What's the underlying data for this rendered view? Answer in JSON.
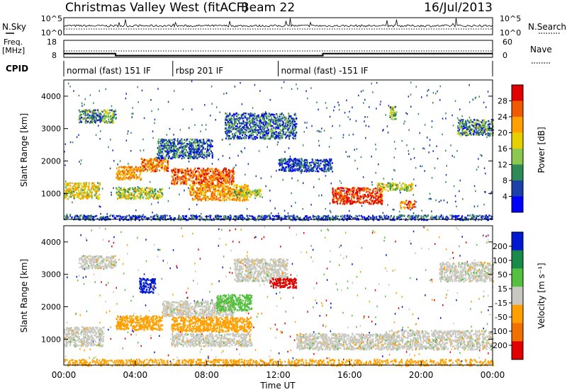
{
  "header": {
    "title": "Christmas Valley West (fitACF)",
    "beam": "Beam 22",
    "date": "16/Jul/2013"
  },
  "aux_labels": {
    "nsky": "N.Sky",
    "nsearch": "N.Search",
    "freq_line1": "Freq.",
    "freq_line2": "[MHz]",
    "nave": "Nave",
    "cpid": "CPID"
  },
  "noise_axis": {
    "top": "10^5",
    "bottom": "10^0"
  },
  "freq_axis": {
    "left_ticks": [
      "18",
      "8"
    ],
    "right_ticks": [
      "60",
      "0"
    ]
  },
  "cpid_segments": [
    {
      "label": "normal (fast) 151 IF",
      "start_h": 0.0,
      "end_h": 6.1
    },
    {
      "label": "rbsp 201 IF",
      "start_h": 6.1,
      "end_h": 12.0
    },
    {
      "label": "normal (fast) -151 IF",
      "start_h": 12.0,
      "end_h": 24.0
    }
  ],
  "freq_trace": [
    {
      "start_h": 0.0,
      "end_h": 2.9,
      "mhz": 10.2
    },
    {
      "start_h": 2.9,
      "end_h": 14.5,
      "mhz": 9.0
    },
    {
      "start_h": 14.5,
      "end_h": 15.0,
      "mhz": 10.2
    },
    {
      "start_h": 15.0,
      "end_h": 24.0,
      "mhz": 10.2
    }
  ],
  "xaxis": {
    "ticks": [
      "00:00",
      "04:00",
      "08:00",
      "12:00",
      "16:00",
      "20:00",
      "00:00"
    ],
    "tick_hours": [
      0,
      4,
      8,
      12,
      16,
      20,
      24
    ],
    "label": "Time UT"
  },
  "power_panel": {
    "ylabel": "Slant Range [km]",
    "yticks": [
      "1000",
      "2000",
      "3000",
      "4000"
    ],
    "colorbar_label": "Power [dB]",
    "colorbar_ticks": [
      "28",
      "24",
      "20",
      "16",
      "12",
      "8",
      "4"
    ],
    "colorbar_colors": [
      "#e00000",
      "#f05a00",
      "#ffa000",
      "#e7d000",
      "#8cc850",
      "#2e8b57",
      "#1c3fa8",
      "#0000ff"
    ]
  },
  "velocity_panel": {
    "ylabel": "Slant Range [km]",
    "yticks": [
      "1000",
      "2000",
      "3000",
      "4000"
    ],
    "colorbar_label": "Velocity [m s⁻¹]",
    "colorbar_ticks": [
      "200",
      "100",
      "50",
      "15",
      "-15",
      "-50",
      "-100",
      "-200"
    ],
    "colorbar_colors": [
      "#0018d0",
      "#1a8a4a",
      "#55c040",
      "#c8c8c0",
      "#ffa000",
      "#f07000",
      "#e00000"
    ]
  },
  "chart_data": [
    {
      "type": "heatmap",
      "title": "Christmas Valley West (fitACF) Beam 22 16/Jul/2013",
      "xlabel": "Time UT",
      "ylabel": "Slant Range [km]",
      "colorbar": "Power [dB]",
      "xlim": [
        0,
        24
      ],
      "ylim": [
        200,
        4500
      ],
      "clim": [
        0,
        30
      ],
      "features": [
        {
          "t0": 0.0,
          "t1": 2.0,
          "r0": 850,
          "r1": 1350,
          "value": 16
        },
        {
          "t0": 0.8,
          "t1": 2.9,
          "r0": 3200,
          "r1": 3600,
          "value": 10
        },
        {
          "t0": 2.9,
          "t1": 4.3,
          "r0": 1450,
          "r1": 1850,
          "value": 20
        },
        {
          "t0": 4.3,
          "t1": 5.8,
          "r0": 1700,
          "r1": 2100,
          "value": 22
        },
        {
          "t0": 2.9,
          "t1": 5.5,
          "r0": 850,
          "r1": 1200,
          "value": 14
        },
        {
          "t0": 5.2,
          "t1": 8.3,
          "r0": 2100,
          "r1": 2700,
          "value": 8
        },
        {
          "t0": 6.0,
          "t1": 9.5,
          "r0": 1300,
          "r1": 1800,
          "value": 24
        },
        {
          "t0": 7.0,
          "t1": 10.3,
          "r0": 800,
          "r1": 1300,
          "value": 20
        },
        {
          "t0": 9.5,
          "t1": 11.0,
          "r0": 900,
          "r1": 1150,
          "value": 14
        },
        {
          "t0": 9.0,
          "t1": 13.0,
          "r0": 2700,
          "r1": 3500,
          "value": 8
        },
        {
          "t0": 12.0,
          "t1": 15.0,
          "r0": 1700,
          "r1": 2100,
          "value": 6
        },
        {
          "t0": 15.0,
          "t1": 17.8,
          "r0": 700,
          "r1": 1200,
          "value": 26
        },
        {
          "t0": 17.5,
          "t1": 19.5,
          "r0": 1100,
          "r1": 1350,
          "value": 14
        },
        {
          "t0": 18.8,
          "t1": 19.6,
          "r0": 550,
          "r1": 800,
          "value": 22
        },
        {
          "t0": 18.2,
          "t1": 18.6,
          "r0": 3300,
          "r1": 3700,
          "value": 12
        },
        {
          "t0": 22.0,
          "t1": 24.0,
          "r0": 2800,
          "r1": 3300,
          "value": 10
        },
        {
          "t0": 0.0,
          "t1": 24.0,
          "r0": 200,
          "r1": 350,
          "value": 6
        }
      ]
    },
    {
      "type": "heatmap",
      "title": "Christmas Valley West (fitACF) Beam 22 16/Jul/2013",
      "xlabel": "Time UT",
      "ylabel": "Slant Range [km]",
      "colorbar": "Velocity [m s⁻¹]",
      "xlim": [
        0,
        24
      ],
      "ylim": [
        200,
        4500
      ],
      "clim": [
        -200,
        200
      ],
      "features": [
        {
          "t0": 0.0,
          "t1": 2.2,
          "r0": 800,
          "r1": 1400,
          "value": 0
        },
        {
          "t0": 0.8,
          "t1": 2.9,
          "r0": 3200,
          "r1": 3600,
          "value": 0
        },
        {
          "t0": 2.9,
          "t1": 5.5,
          "r0": 1300,
          "r1": 1750,
          "value": -40
        },
        {
          "t0": 4.2,
          "t1": 5.1,
          "r0": 2450,
          "r1": 2900,
          "value": 180
        },
        {
          "t0": 5.5,
          "t1": 9.5,
          "r0": 1700,
          "r1": 2200,
          "value": 0
        },
        {
          "t0": 6.0,
          "t1": 10.5,
          "r0": 1250,
          "r1": 1700,
          "value": -40
        },
        {
          "t0": 6.0,
          "t1": 10.5,
          "r0": 800,
          "r1": 1200,
          "value": 0
        },
        {
          "t0": 8.5,
          "t1": 10.5,
          "r0": 1900,
          "r1": 2400,
          "value": 40
        },
        {
          "t0": 9.5,
          "t1": 12.5,
          "r0": 2800,
          "r1": 3500,
          "value": 0
        },
        {
          "t0": 11.5,
          "t1": 13.0,
          "r0": 2600,
          "r1": 2900,
          "value": -200
        },
        {
          "t0": 13.0,
          "t1": 18.5,
          "r0": 700,
          "r1": 1200,
          "value": 0
        },
        {
          "t0": 18.0,
          "t1": 24.0,
          "r0": 700,
          "r1": 1300,
          "value": 0
        },
        {
          "t0": 21.0,
          "t1": 24.0,
          "r0": 2800,
          "r1": 3400,
          "value": 0
        },
        {
          "t0": 0.0,
          "t1": 24.0,
          "r0": 200,
          "r1": 400,
          "value": -40
        }
      ]
    }
  ]
}
